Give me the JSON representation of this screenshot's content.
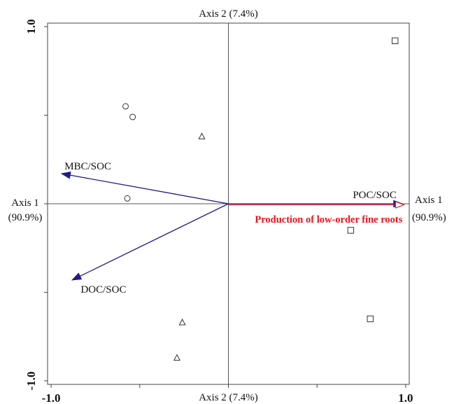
{
  "chart_data": {
    "type": "scatter",
    "subtype": "ordination-biplot",
    "axis_labels": {
      "top": "Axis 2 (7.4%)",
      "bottom": "Axis 2 (7.4%)",
      "left": [
        "Axis 1",
        "(90.9%)"
      ],
      "right": [
        "Axis 1",
        "(90.9%)"
      ]
    },
    "xlim": [
      -1.0,
      1.0
    ],
    "ylim": [
      -1.0,
      1.0
    ],
    "x_ticks": [
      "-1.0",
      "1.0"
    ],
    "y_ticks": [
      "1.0",
      "-1.0"
    ],
    "grid": false,
    "vectors": [
      {
        "name": "MBC/SOC",
        "x": -0.94,
        "y": 0.17,
        "color": "#1f1c8c"
      },
      {
        "name": "DOC/SOC",
        "x": -0.88,
        "y": -0.43,
        "color": "#1f1c8c"
      },
      {
        "name": "POC/SOC",
        "x": 0.98,
        "y": 0.0,
        "color": "#1f1c8c"
      },
      {
        "name": "Production of low-order fine roots",
        "x": 0.99,
        "y": 0.0,
        "color": "#e8141b"
      }
    ],
    "series": [
      {
        "marker": "circle",
        "points": [
          [
            -0.58,
            0.55
          ],
          [
            -0.54,
            0.49
          ],
          [
            -0.57,
            0.03
          ]
        ]
      },
      {
        "marker": "triangle",
        "points": [
          [
            -0.15,
            0.38
          ],
          [
            -0.26,
            -0.67
          ],
          [
            -0.29,
            -0.87
          ]
        ]
      },
      {
        "marker": "square",
        "points": [
          [
            0.94,
            0.92
          ],
          [
            0.69,
            -0.15
          ],
          [
            0.8,
            -0.65
          ]
        ]
      }
    ]
  }
}
